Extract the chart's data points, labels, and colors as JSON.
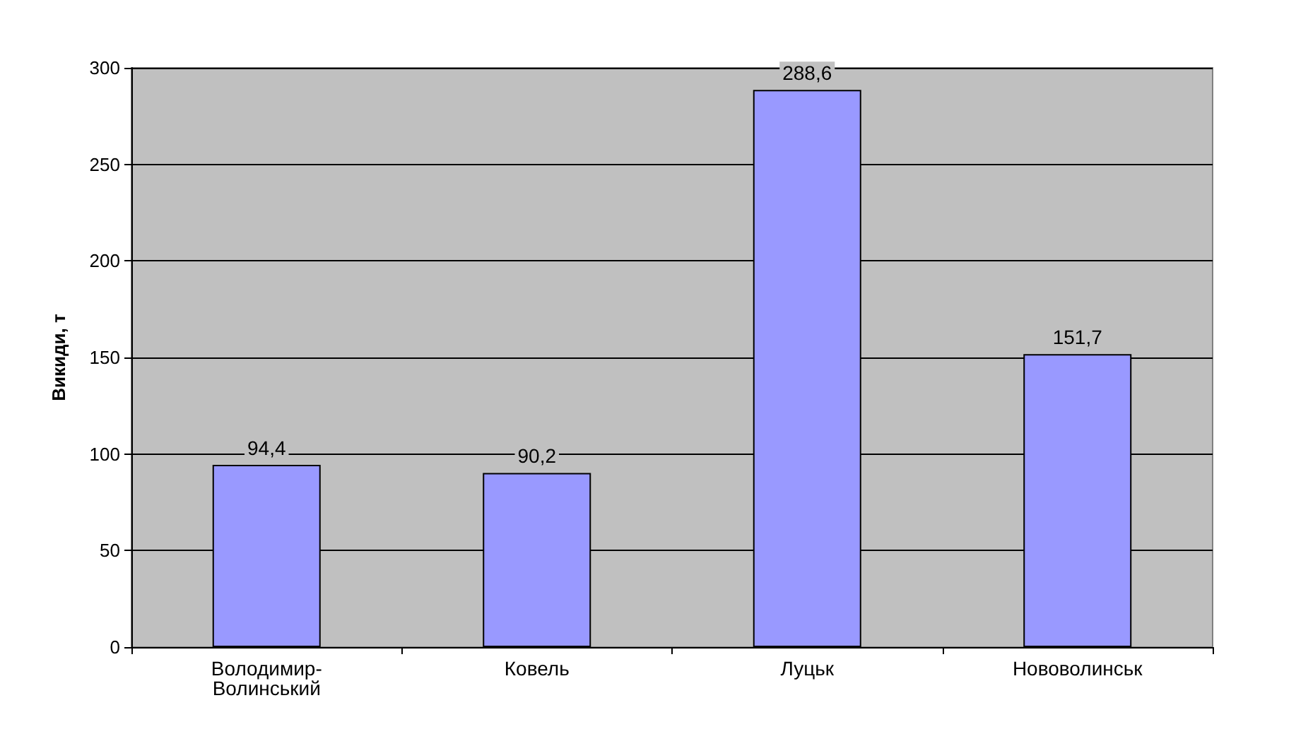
{
  "chart_data": {
    "type": "bar",
    "ylabel": "Викиди, т",
    "categories": [
      "Володимир-Волинський",
      "Ковель",
      "Луцьк",
      "Нововолинськ"
    ],
    "values": [
      94.4,
      90.2,
      288.6,
      151.7
    ],
    "value_labels": [
      "94,4",
      "90,2",
      "288,6",
      "151,7"
    ],
    "color": "#9999ff",
    "ylim": [
      0,
      300
    ],
    "yticks": [
      0,
      50,
      100,
      150,
      200,
      250,
      300
    ],
    "grid": "y"
  }
}
